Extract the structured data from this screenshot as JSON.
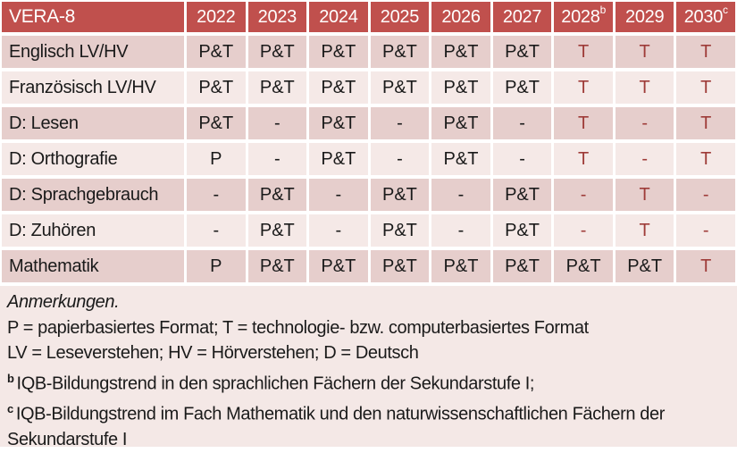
{
  "table": {
    "header": {
      "title": "VERA-8",
      "years": [
        {
          "label": "2022",
          "sup": ""
        },
        {
          "label": "2023",
          "sup": ""
        },
        {
          "label": "2024",
          "sup": ""
        },
        {
          "label": "2025",
          "sup": ""
        },
        {
          "label": "2026",
          "sup": ""
        },
        {
          "label": "2027",
          "sup": ""
        },
        {
          "label": "2028",
          "sup": "b"
        },
        {
          "label": "2029",
          "sup": ""
        },
        {
          "label": "2030",
          "sup": "c"
        }
      ]
    },
    "rows": [
      {
        "label": "Englisch LV/HV",
        "cells": [
          {
            "v": "P&T",
            "red": false
          },
          {
            "v": "P&T",
            "red": false
          },
          {
            "v": "P&T",
            "red": false
          },
          {
            "v": "P&T",
            "red": false
          },
          {
            "v": "P&T",
            "red": false
          },
          {
            "v": "P&T",
            "red": false
          },
          {
            "v": "T",
            "red": true
          },
          {
            "v": "T",
            "red": true
          },
          {
            "v": "T",
            "red": true
          }
        ]
      },
      {
        "label": "Französisch LV/HV",
        "cells": [
          {
            "v": "P&T",
            "red": false
          },
          {
            "v": "P&T",
            "red": false
          },
          {
            "v": "P&T",
            "red": false
          },
          {
            "v": "P&T",
            "red": false
          },
          {
            "v": "P&T",
            "red": false
          },
          {
            "v": "P&T",
            "red": false
          },
          {
            "v": "T",
            "red": true
          },
          {
            "v": "T",
            "red": true
          },
          {
            "v": "T",
            "red": true
          }
        ]
      },
      {
        "label": "D: Lesen",
        "cells": [
          {
            "v": "P&T",
            "red": false
          },
          {
            "v": "-",
            "red": false
          },
          {
            "v": "P&T",
            "red": false
          },
          {
            "v": "-",
            "red": false
          },
          {
            "v": "P&T",
            "red": false
          },
          {
            "v": "-",
            "red": false
          },
          {
            "v": "T",
            "red": true
          },
          {
            "v": "-",
            "red": true
          },
          {
            "v": "T",
            "red": true
          }
        ]
      },
      {
        "label": "D: Orthografie",
        "cells": [
          {
            "v": "P",
            "red": false
          },
          {
            "v": "-",
            "red": false
          },
          {
            "v": "P&T",
            "red": false
          },
          {
            "v": "-",
            "red": false
          },
          {
            "v": "P&T",
            "red": false
          },
          {
            "v": "-",
            "red": false
          },
          {
            "v": "T",
            "red": true
          },
          {
            "v": "-",
            "red": true
          },
          {
            "v": "T",
            "red": true
          }
        ]
      },
      {
        "label": "D: Sprachgebrauch",
        "cells": [
          {
            "v": "-",
            "red": false
          },
          {
            "v": "P&T",
            "red": false
          },
          {
            "v": "-",
            "red": false
          },
          {
            "v": "P&T",
            "red": false
          },
          {
            "v": "-",
            "red": false
          },
          {
            "v": "P&T",
            "red": false
          },
          {
            "v": "-",
            "red": true
          },
          {
            "v": "T",
            "red": true
          },
          {
            "v": "-",
            "red": true
          }
        ]
      },
      {
        "label": "D: Zuhören",
        "cells": [
          {
            "v": "-",
            "red": false
          },
          {
            "v": "P&T",
            "red": false
          },
          {
            "v": "-",
            "red": false
          },
          {
            "v": "P&T",
            "red": false
          },
          {
            "v": "-",
            "red": false
          },
          {
            "v": "P&T",
            "red": false
          },
          {
            "v": "-",
            "red": true
          },
          {
            "v": "T",
            "red": true
          },
          {
            "v": "-",
            "red": true
          }
        ]
      },
      {
        "label": "Mathematik",
        "cells": [
          {
            "v": "P",
            "red": false
          },
          {
            "v": "P&T",
            "red": false
          },
          {
            "v": "P&T",
            "red": false
          },
          {
            "v": "P&T",
            "red": false
          },
          {
            "v": "P&T",
            "red": false
          },
          {
            "v": "P&T",
            "red": false
          },
          {
            "v": "P&T",
            "red": false
          },
          {
            "v": "P&T",
            "red": false
          },
          {
            "v": "T",
            "red": true
          }
        ]
      }
    ]
  },
  "notes": {
    "heading": "Anmerkungen.",
    "lines": [
      {
        "sup": "",
        "text": "P = papierbasiertes Format; T = technologie- bzw. computerbasiertes Format"
      },
      {
        "sup": "",
        "text": "LV = Leseverstehen; HV = Hörverstehen; D = Deutsch"
      },
      {
        "sup": "b",
        "text": "IQB-Bildungstrend in den sprachlichen Fächern der Sekundarstufe I;"
      },
      {
        "sup": "c",
        "text": "IQB-Bildungstrend im Fach Mathematik und den naturwissenschaftlichen Fächern der Sekundarstufe I"
      }
    ]
  },
  "colors": {
    "header_bg": "#C0504D",
    "header_text": "#FFFFFF",
    "band_dark": "#E6CECC",
    "band_light": "#F5E9E7",
    "notes_bg": "#F4E8E6",
    "red_text": "#9E3B38",
    "body_text": "#1A1A1A"
  }
}
